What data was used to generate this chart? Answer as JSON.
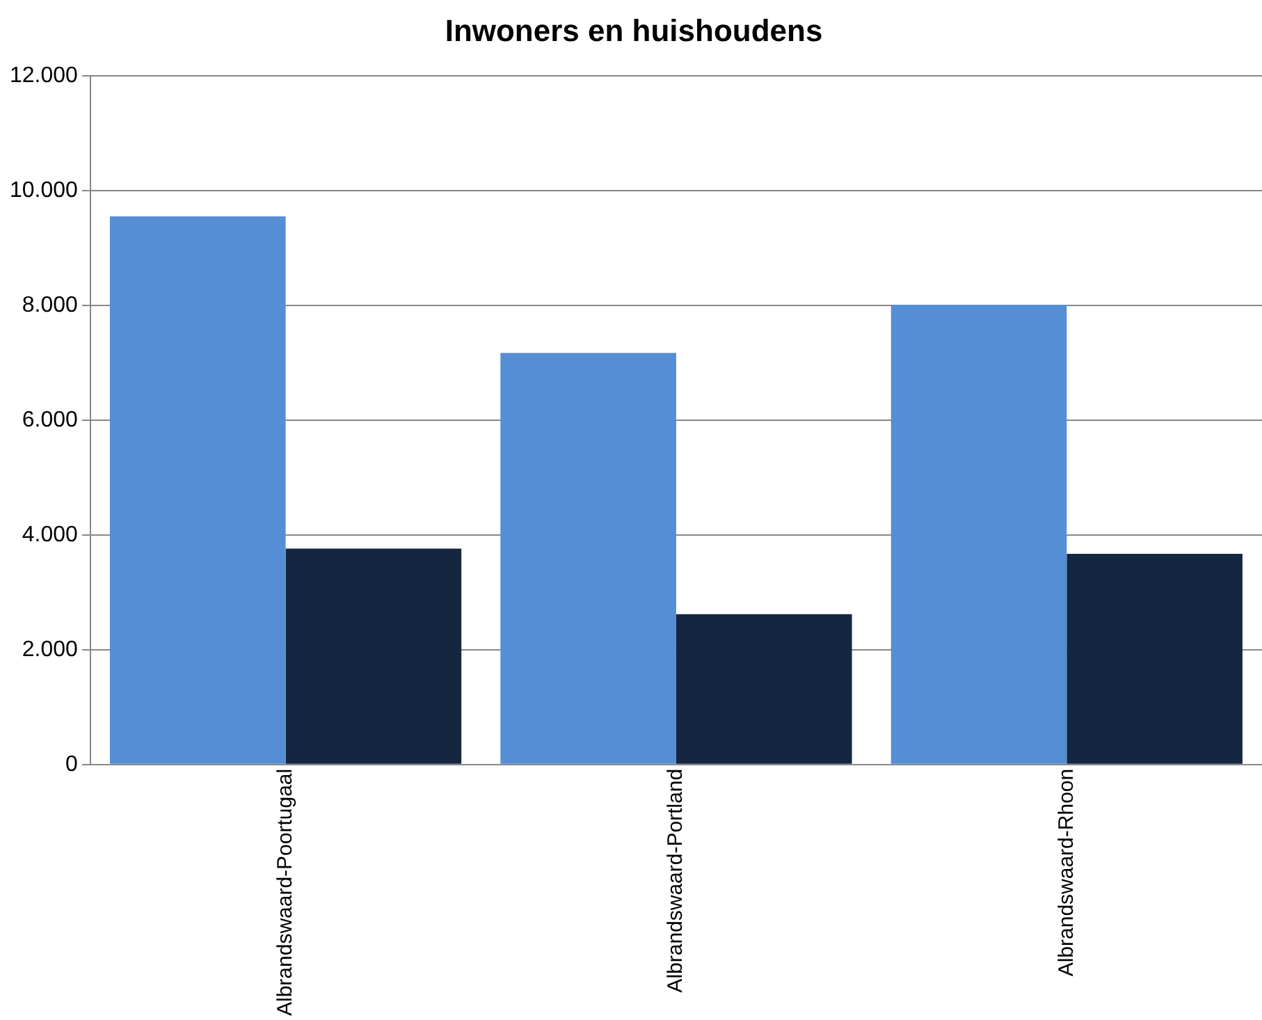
{
  "chart_data": {
    "type": "bar",
    "title": "Inwoners en huishoudens",
    "categories": [
      "Albrandswaard-Poortugaal",
      "Albrandswaard-Portland",
      "Albrandswaard-Rhoon"
    ],
    "series": [
      {
        "color": "#558ed5",
        "values": [
          9550,
          7170,
          8010
        ]
      },
      {
        "color": "#142640",
        "values": [
          3760,
          2620,
          3670
        ]
      }
    ],
    "ylim": [
      0,
      12000
    ],
    "yticks": [
      {
        "value": 0,
        "label": "0"
      },
      {
        "value": 2000,
        "label": "2.000"
      },
      {
        "value": 4000,
        "label": "4.000"
      },
      {
        "value": 6000,
        "label": "6.000"
      },
      {
        "value": 8000,
        "label": "8.000"
      },
      {
        "value": 10000,
        "label": "10.000"
      },
      {
        "value": 12000,
        "label": "12.000"
      }
    ],
    "grid": "y",
    "legend": false
  }
}
